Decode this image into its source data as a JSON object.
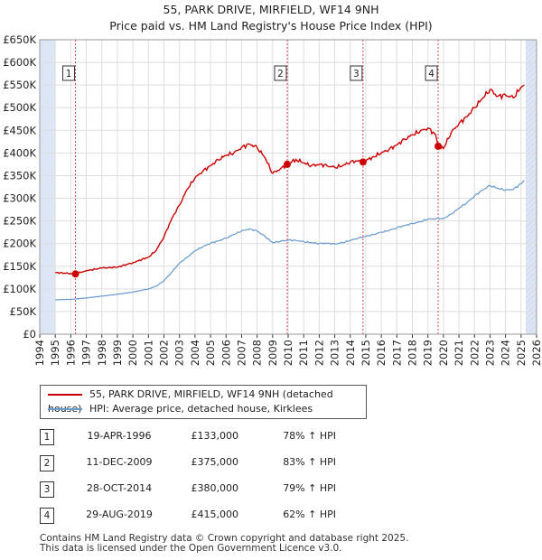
{
  "title": "55, PARK DRIVE, MIRFIELD, WF14 9NH",
  "subtitle": "Price paid vs. HM Land Registry's House Price Index (HPI)",
  "colors": {
    "property": "#cc0000",
    "hpi": "#6699cc",
    "shade": "#dde6f5",
    "grid": "#dddddd"
  },
  "legend": {
    "property": "55, PARK DRIVE, MIRFIELD, WF14 9NH (detached house)",
    "hpi": "HPI: Average price, detached house, Kirklees"
  },
  "transactions": [
    {
      "id": "1",
      "date": "19-APR-1996",
      "price": "£133,000",
      "hpi": "78% ↑ HPI"
    },
    {
      "id": "2",
      "date": "11-DEC-2009",
      "price": "£375,000",
      "hpi": "83% ↑ HPI"
    },
    {
      "id": "3",
      "date": "28-OCT-2014",
      "price": "£380,000",
      "hpi": "79% ↑ HPI"
    },
    {
      "id": "4",
      "date": "29-AUG-2019",
      "price": "£415,000",
      "hpi": "62% ↑ HPI"
    }
  ],
  "footer": {
    "line1": "Contains HM Land Registry data © Crown copyright and database right 2025.",
    "line2": "This data is licensed under the Open Government Licence v3.0."
  },
  "chart_data": {
    "type": "line",
    "title": "55, PARK DRIVE, MIRFIELD, WF14 9NH",
    "subtitle": "Price paid vs. HM Land Registry's House Price Index (HPI)",
    "xlim": [
      1994,
      2026
    ],
    "ylim": [
      0,
      650000
    ],
    "y_tick_values": [
      0,
      50000,
      100000,
      150000,
      200000,
      250000,
      300000,
      350000,
      400000,
      450000,
      500000,
      550000,
      600000,
      650000
    ],
    "y_tick_labels": [
      "£0",
      "£50K",
      "£100K",
      "£150K",
      "£200K",
      "£250K",
      "£300K",
      "£350K",
      "£400K",
      "£450K",
      "£500K",
      "£550K",
      "£600K",
      "£650K"
    ],
    "x_ticks": [
      1994,
      1995,
      1996,
      1997,
      1998,
      1999,
      2000,
      2001,
      2002,
      2003,
      2004,
      2005,
      2006,
      2007,
      2008,
      2009,
      2010,
      2011,
      2012,
      2013,
      2014,
      2015,
      2016,
      2017,
      2018,
      2019,
      2020,
      2021,
      2022,
      2023,
      2024,
      2025,
      2026
    ],
    "data_start": 1995.0,
    "data_end": 2025.3,
    "grid": true,
    "series": [
      {
        "name": "55, PARK DRIVE, MIRFIELD, WF14 9NH (detached house)",
        "x": [
          1995.0,
          1996.0,
          1996.3,
          1997.0,
          1998.0,
          1999.0,
          2000.0,
          2001.0,
          2001.5,
          2002.0,
          2002.5,
          2003.0,
          2003.5,
          2004.0,
          2004.5,
          2005.0,
          2005.5,
          2006.0,
          2006.5,
          2007.0,
          2007.5,
          2008.0,
          2008.5,
          2009.0,
          2009.5,
          2009.94,
          2010.5,
          2011.0,
          2011.5,
          2012.0,
          2012.5,
          2013.0,
          2013.5,
          2014.0,
          2014.5,
          2014.82,
          2015.5,
          2016.0,
          2016.5,
          2017.0,
          2017.5,
          2018.0,
          2018.5,
          2019.0,
          2019.5,
          2019.66,
          2020.0,
          2020.5,
          2021.0,
          2021.5,
          2022.0,
          2022.5,
          2023.0,
          2023.5,
          2024.0,
          2024.5,
          2025.0,
          2025.2
        ],
        "y": [
          136000,
          134000,
          133000,
          140000,
          146000,
          148000,
          158000,
          170000,
          185000,
          215000,
          255000,
          285000,
          320000,
          345000,
          360000,
          372000,
          385000,
          395000,
          400000,
          412000,
          420000,
          412000,
          390000,
          355000,
          365000,
          375000,
          386000,
          378000,
          372000,
          375000,
          372000,
          368000,
          372000,
          380000,
          383000,
          380000,
          392000,
          400000,
          408000,
          418000,
          430000,
          440000,
          448000,
          455000,
          440000,
          415000,
          410000,
          445000,
          465000,
          480000,
          500000,
          520000,
          540000,
          525000,
          528000,
          522000,
          545000,
          550000
        ]
      },
      {
        "name": "HPI: Average price, detached house, Kirklees",
        "x": [
          1995.0,
          1996.0,
          1997.0,
          1998.0,
          1999.0,
          2000.0,
          2001.0,
          2001.5,
          2002.0,
          2002.5,
          2003.0,
          2003.5,
          2004.0,
          2004.5,
          2005.0,
          2005.5,
          2006.0,
          2006.5,
          2007.0,
          2007.5,
          2008.0,
          2008.5,
          2009.0,
          2009.5,
          2010.0,
          2010.5,
          2011.0,
          2011.5,
          2012.0,
          2012.5,
          2013.0,
          2013.5,
          2014.0,
          2014.5,
          2015.0,
          2015.5,
          2016.0,
          2016.5,
          2017.0,
          2017.5,
          2018.0,
          2018.5,
          2019.0,
          2019.5,
          2020.0,
          2020.5,
          2021.0,
          2021.5,
          2022.0,
          2022.5,
          2023.0,
          2023.5,
          2024.0,
          2024.5,
          2025.0,
          2025.2
        ],
        "y": [
          76000,
          77000,
          80000,
          84000,
          88000,
          93000,
          100000,
          106000,
          118000,
          137000,
          157000,
          170000,
          184000,
          193000,
          201000,
          206000,
          212000,
          220000,
          228000,
          232000,
          228000,
          216000,
          202000,
          205000,
          208000,
          207000,
          204000,
          202000,
          200000,
          201000,
          199000,
          202000,
          207000,
          212000,
          216000,
          220000,
          225000,
          229000,
          235000,
          240000,
          244000,
          248000,
          254000,
          255000,
          255000,
          265000,
          278000,
          290000,
          305000,
          318000,
          328000,
          322000,
          318000,
          320000,
          332000,
          340000
        ]
      }
    ],
    "sales": [
      {
        "label": "1",
        "x": 1996.3,
        "y": 133000
      },
      {
        "label": "2",
        "x": 2009.94,
        "y": 375000
      },
      {
        "label": "3",
        "x": 2014.82,
        "y": 380000
      },
      {
        "label": "4",
        "x": 2019.66,
        "y": 415000
      }
    ]
  }
}
